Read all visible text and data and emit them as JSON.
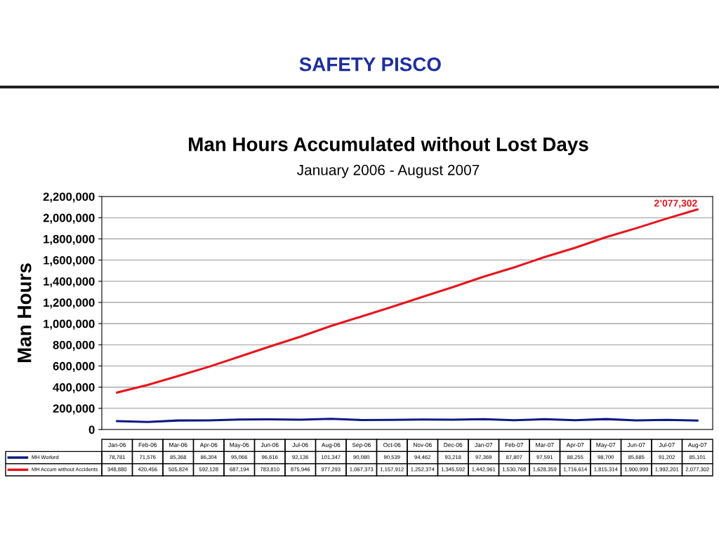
{
  "chart_data": {
    "type": "line",
    "title": "Man Hours Accumulated without Lost Days",
    "subtitle": "January 2006 - August 2007",
    "ylabel": "Man Hours",
    "annotations": [
      "SAFETY PISCO",
      {
        "text": "2’077,302",
        "x": "Aug-07",
        "y": 2077302
      }
    ],
    "categories": [
      "Jan-06",
      "Feb-06",
      "Mar-06",
      "Apr-06",
      "May-06",
      "Jun-06",
      "Jul-06",
      "Aug-06",
      "Sep-06",
      "Oct-06",
      "Nov-06",
      "Dec-06",
      "Jan-07",
      "Feb-07",
      "Mar-07",
      "Apr-07",
      "May-07",
      "Jun-07",
      "Jul-07",
      "Aug-07"
    ],
    "series": [
      {
        "name": "MH Worked",
        "color": "#0d1a80",
        "values": [
          78781,
          71576,
          85368,
          86304,
          95066,
          96616,
          92136,
          101347,
          90080,
          90539,
          94462,
          93218,
          97369,
          87807,
          97591,
          88255,
          98700,
          85685,
          91202,
          85101
        ],
        "value_labels": [
          "78,781",
          "71,576",
          "85,368",
          "86,304",
          "95,066",
          "96,616",
          "92,136",
          "101,347",
          "90,080",
          "90,539",
          "94,462",
          "93,218",
          "97,369",
          "87,807",
          "97,591",
          "88,255",
          "98,700",
          "85,685",
          "91,202",
          "85,101"
        ]
      },
      {
        "name": "MH Accum without Accidents",
        "color": "#e8141c",
        "values": [
          348880,
          420456,
          505824,
          592128,
          687194,
          783810,
          875946,
          977293,
          1067373,
          1157912,
          1252374,
          1345592,
          1442961,
          1530768,
          1628359,
          1716614,
          1815314,
          1900999,
          1992201,
          2077302
        ],
        "value_labels": [
          "348,880",
          "420,456",
          "505,824",
          "592,128",
          "687,194",
          "783,810",
          "875,946",
          "977,293",
          "1,067,373",
          "1,157,912",
          "1,252,374",
          "1,345,592",
          "1,442,961",
          "1,530,768",
          "1,628,359",
          "1,716,614",
          "1,815,314",
          "1,900,999",
          "1,992,201",
          "2,077,302"
        ]
      }
    ],
    "ylim": [
      0,
      2200000
    ],
    "yticks": [
      0,
      {
        "value": 200000,
        "label": "200,000"
      },
      {
        "value": 400000,
        "label": "400,000"
      },
      {
        "value": 600000,
        "label": "600,000"
      },
      {
        "value": 800000,
        "label": "800,000"
      },
      {
        "value": 1000000,
        "label": "1,000,000"
      },
      {
        "value": 1200000,
        "label": "1,200,000"
      },
      {
        "value": 1400000,
        "label": "1,400,000"
      },
      {
        "value": 1600000,
        "label": "1,600,000"
      },
      {
        "value": 1800000,
        "label": "1,800,000"
      },
      {
        "value": 2000000,
        "label": "2,000,000"
      },
      {
        "value": 2200000,
        "label": "2,200,000"
      }
    ],
    "grid": "y",
    "legend": "bottom",
    "marker": "none",
    "line_style": "solid"
  }
}
